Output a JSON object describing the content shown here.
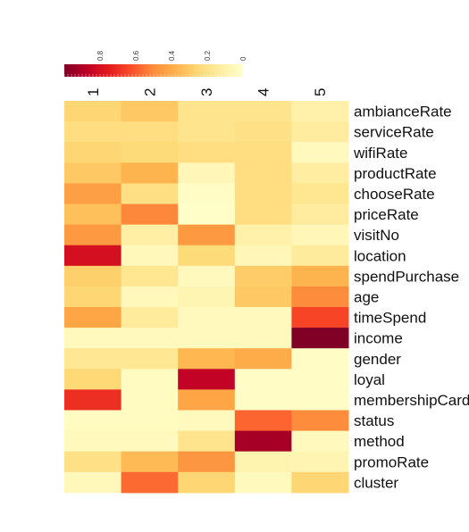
{
  "chart_data": {
    "type": "heatmap",
    "title": "",
    "columns": [
      "1",
      "2",
      "3",
      "4",
      "5"
    ],
    "rows": [
      "ambianceRate",
      "serviceRate",
      "wifiRate",
      "productRate",
      "chooseRate",
      "priceRate",
      "visitNo",
      "location",
      "spendPurchase",
      "age",
      "timeSpend",
      "income",
      "gender",
      "loyal",
      "membershipCard",
      "status",
      "method",
      "promoRate",
      "cluster"
    ],
    "values": [
      [
        0.26,
        0.3,
        0.18,
        0.18,
        0.1
      ],
      [
        0.22,
        0.22,
        0.18,
        0.2,
        0.13
      ],
      [
        0.26,
        0.24,
        0.22,
        0.22,
        0.04
      ],
      [
        0.3,
        0.37,
        0.06,
        0.22,
        0.12
      ],
      [
        0.44,
        0.21,
        0.02,
        0.22,
        0.17
      ],
      [
        0.33,
        0.51,
        0.01,
        0.22,
        0.13
      ],
      [
        0.46,
        0.11,
        0.46,
        0.1,
        0.06
      ],
      [
        0.8,
        0.05,
        0.24,
        0.06,
        0.14
      ],
      [
        0.28,
        0.17,
        0.04,
        0.29,
        0.37
      ],
      [
        0.26,
        0.05,
        0.07,
        0.3,
        0.5
      ],
      [
        0.42,
        0.14,
        0.04,
        0.04,
        0.65
      ],
      [
        0.04,
        0.04,
        0.04,
        0.04,
        1.0
      ],
      [
        0.16,
        0.16,
        0.36,
        0.4,
        0.02
      ],
      [
        0.25,
        0.03,
        0.86,
        0.02,
        0.02
      ],
      [
        0.7,
        0.03,
        0.42,
        0.02,
        0.02
      ],
      [
        0.03,
        0.03,
        0.04,
        0.58,
        0.5
      ],
      [
        0.04,
        0.04,
        0.18,
        0.92,
        0.04
      ],
      [
        0.2,
        0.35,
        0.47,
        0.08,
        0.07
      ],
      [
        0.05,
        0.57,
        0.26,
        0.04,
        0.26
      ]
    ],
    "legend": {
      "min": 0,
      "max": 1,
      "ticks": [
        0.8,
        0.6,
        0.4,
        0.2,
        0
      ],
      "tick_labels": [
        "0.8",
        "0.6",
        "0.4",
        "0.2",
        "0"
      ],
      "direction": "high-to-low",
      "placement": "top-left"
    },
    "colormap": [
      "#ffffcc",
      "#ffeda0",
      "#fed976",
      "#feb24c",
      "#fd8d3c",
      "#fc4e2a",
      "#e31a1c",
      "#bd0026",
      "#800026"
    ],
    "grid": false
  }
}
